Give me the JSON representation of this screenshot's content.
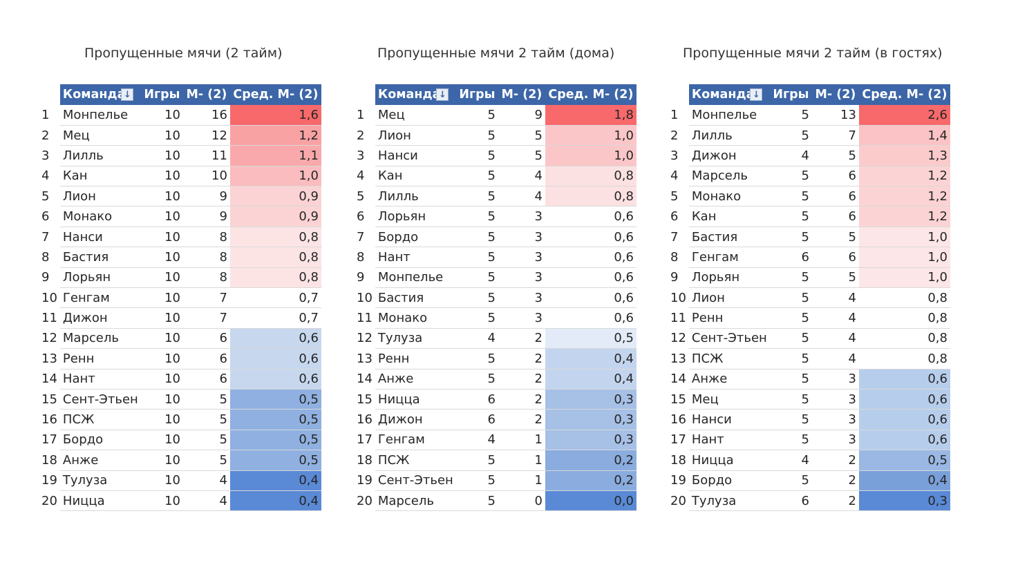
{
  "tables": [
    {
      "title": "Пропущенные мячи (2 тайм)",
      "headers": {
        "team": "Команда",
        "games": "Игры",
        "goals": "М- (2)",
        "avg": "Сред. М- (2)"
      },
      "rows": [
        {
          "rank": "1",
          "team": "Монпелье",
          "games": "10",
          "goals": "16",
          "avg": "1,6",
          "color": "#f8696b"
        },
        {
          "rank": "2",
          "team": "Мец",
          "games": "10",
          "goals": "12",
          "avg": "1,2",
          "color": "#f9a2a4"
        },
        {
          "rank": "3",
          "team": "Лилль",
          "games": "10",
          "goals": "11",
          "avg": "1,1",
          "color": "#f9a9ab"
        },
        {
          "rank": "4",
          "team": "Кан",
          "games": "10",
          "goals": "10",
          "avg": "1,0",
          "color": "#fabcbe"
        },
        {
          "rank": "5",
          "team": "Лион",
          "games": "10",
          "goals": "9",
          "avg": "0,9",
          "color": "#fbd3d4"
        },
        {
          "rank": "6",
          "team": "Монако",
          "games": "10",
          "goals": "9",
          "avg": "0,9",
          "color": "#fbd3d4"
        },
        {
          "rank": "7",
          "team": "Нанси",
          "games": "10",
          "goals": "8",
          "avg": "0,8",
          "color": "#fce4e5"
        },
        {
          "rank": "8",
          "team": "Бастия",
          "games": "10",
          "goals": "8",
          "avg": "0,8",
          "color": "#fce4e5"
        },
        {
          "rank": "9",
          "team": "Лорьян",
          "games": "10",
          "goals": "8",
          "avg": "0,8",
          "color": "#fce4e5"
        },
        {
          "rank": "10",
          "team": "Генгам",
          "games": "10",
          "goals": "7",
          "avg": "0,7",
          "color": "#ffffff"
        },
        {
          "rank": "11",
          "team": "Дижон",
          "games": "10",
          "goals": "7",
          "avg": "0,7",
          "color": "#ffffff"
        },
        {
          "rank": "12",
          "team": "Марсель",
          "games": "10",
          "goals": "6",
          "avg": "0,6",
          "color": "#c6d7ee"
        },
        {
          "rank": "13",
          "team": "Ренн",
          "games": "10",
          "goals": "6",
          "avg": "0,6",
          "color": "#c6d7ee"
        },
        {
          "rank": "14",
          "team": "Нант",
          "games": "10",
          "goals": "6",
          "avg": "0,6",
          "color": "#c6d7ee"
        },
        {
          "rank": "15",
          "team": "Сент-Этьен",
          "games": "10",
          "goals": "5",
          "avg": "0,5",
          "color": "#8fb0e0"
        },
        {
          "rank": "16",
          "team": "ПСЖ",
          "games": "10",
          "goals": "5",
          "avg": "0,5",
          "color": "#8fb0e0"
        },
        {
          "rank": "17",
          "team": "Бордо",
          "games": "10",
          "goals": "5",
          "avg": "0,5",
          "color": "#8fb0e0"
        },
        {
          "rank": "18",
          "team": "Анже",
          "games": "10",
          "goals": "5",
          "avg": "0,5",
          "color": "#8fb0e0"
        },
        {
          "rank": "19",
          "team": "Тулуза",
          "games": "10",
          "goals": "4",
          "avg": "0,4",
          "color": "#5a8ad6"
        },
        {
          "rank": "20",
          "team": "Ницца",
          "games": "10",
          "goals": "4",
          "avg": "0,4",
          "color": "#5a8ad6"
        }
      ]
    },
    {
      "title": "Пропущенные мячи 2 тайм (дома)",
      "headers": {
        "team": "Команда",
        "games": "Игры",
        "goals": "М- (2)",
        "avg": "Сред. М- (2)"
      },
      "rows": [
        {
          "rank": "1",
          "team": "Мец",
          "games": "5",
          "goals": "9",
          "avg": "1,8",
          "color": "#f8696b"
        },
        {
          "rank": "2",
          "team": "Лион",
          "games": "5",
          "goals": "5",
          "avg": "1,0",
          "color": "#fbc6c8"
        },
        {
          "rank": "3",
          "team": "Нанси",
          "games": "5",
          "goals": "5",
          "avg": "1,0",
          "color": "#fbc6c8"
        },
        {
          "rank": "4",
          "team": "Кан",
          "games": "5",
          "goals": "4",
          "avg": "0,8",
          "color": "#fce1e2"
        },
        {
          "rank": "5",
          "team": "Лилль",
          "games": "5",
          "goals": "4",
          "avg": "0,8",
          "color": "#fce1e2"
        },
        {
          "rank": "6",
          "team": "Лорьян",
          "games": "5",
          "goals": "3",
          "avg": "0,6",
          "color": "#ffffff"
        },
        {
          "rank": "7",
          "team": "Бордо",
          "games": "5",
          "goals": "3",
          "avg": "0,6",
          "color": "#ffffff"
        },
        {
          "rank": "8",
          "team": "Нант",
          "games": "5",
          "goals": "3",
          "avg": "0,6",
          "color": "#ffffff"
        },
        {
          "rank": "9",
          "team": "Монпелье",
          "games": "5",
          "goals": "3",
          "avg": "0,6",
          "color": "#ffffff"
        },
        {
          "rank": "10",
          "team": "Бастия",
          "games": "5",
          "goals": "3",
          "avg": "0,6",
          "color": "#ffffff"
        },
        {
          "rank": "11",
          "team": "Монако",
          "games": "5",
          "goals": "3",
          "avg": "0,6",
          "color": "#ffffff"
        },
        {
          "rank": "12",
          "team": "Тулуза",
          "games": "4",
          "goals": "2",
          "avg": "0,5",
          "color": "#e2ebf7"
        },
        {
          "rank": "13",
          "team": "Ренн",
          "games": "5",
          "goals": "2",
          "avg": "0,4",
          "color": "#c3d5ee"
        },
        {
          "rank": "14",
          "team": "Анже",
          "games": "5",
          "goals": "2",
          "avg": "0,4",
          "color": "#c3d5ee"
        },
        {
          "rank": "15",
          "team": "Ницца",
          "games": "6",
          "goals": "2",
          "avg": "0,3",
          "color": "#a6c0e6"
        },
        {
          "rank": "16",
          "team": "Дижон",
          "games": "6",
          "goals": "2",
          "avg": "0,3",
          "color": "#a6c0e6"
        },
        {
          "rank": "17",
          "team": "Генгам",
          "games": "4",
          "goals": "1",
          "avg": "0,3",
          "color": "#a6c0e6"
        },
        {
          "rank": "18",
          "team": "ПСЖ",
          "games": "5",
          "goals": "1",
          "avg": "0,2",
          "color": "#8aacde"
        },
        {
          "rank": "19",
          "team": "Сент-Этьен",
          "games": "5",
          "goals": "1",
          "avg": "0,2",
          "color": "#8aacde"
        },
        {
          "rank": "20",
          "team": "Марсель",
          "games": "5",
          "goals": "0",
          "avg": "0,0",
          "color": "#5a8ad6"
        }
      ]
    },
    {
      "title": "Пропущенные мячи 2 тайм (в гостях)",
      "headers": {
        "team": "Команда",
        "games": "Игры",
        "goals": "М- (2)",
        "avg": "Сред. М- (2)"
      },
      "rows": [
        {
          "rank": "1",
          "team": "Монпелье",
          "games": "5",
          "goals": "13",
          "avg": "2,6",
          "color": "#f8696b"
        },
        {
          "rank": "2",
          "team": "Лилль",
          "games": "5",
          "goals": "7",
          "avg": "1,4",
          "color": "#fbc3c5"
        },
        {
          "rank": "3",
          "team": "Дижон",
          "games": "4",
          "goals": "5",
          "avg": "1,3",
          "color": "#fbcbcc"
        },
        {
          "rank": "4",
          "team": "Марсель",
          "games": "5",
          "goals": "6",
          "avg": "1,2",
          "color": "#fcd3d4"
        },
        {
          "rank": "5",
          "team": "Монако",
          "games": "5",
          "goals": "6",
          "avg": "1,2",
          "color": "#fcd3d4"
        },
        {
          "rank": "6",
          "team": "Кан",
          "games": "5",
          "goals": "6",
          "avg": "1,2",
          "color": "#fcd3d4"
        },
        {
          "rank": "7",
          "team": "Бастия",
          "games": "5",
          "goals": "5",
          "avg": "1,0",
          "color": "#fde6e7"
        },
        {
          "rank": "8",
          "team": "Генгам",
          "games": "6",
          "goals": "6",
          "avg": "1,0",
          "color": "#fde6e7"
        },
        {
          "rank": "9",
          "team": "Лорьян",
          "games": "5",
          "goals": "5",
          "avg": "1,0",
          "color": "#fde6e7"
        },
        {
          "rank": "10",
          "team": "Лион",
          "games": "5",
          "goals": "4",
          "avg": "0,8",
          "color": "#ffffff"
        },
        {
          "rank": "11",
          "team": "Ренн",
          "games": "5",
          "goals": "4",
          "avg": "0,8",
          "color": "#ffffff"
        },
        {
          "rank": "12",
          "team": "Сент-Этьен",
          "games": "5",
          "goals": "4",
          "avg": "0,8",
          "color": "#ffffff"
        },
        {
          "rank": "13",
          "team": "ПСЖ",
          "games": "5",
          "goals": "4",
          "avg": "0,8",
          "color": "#ffffff"
        },
        {
          "rank": "14",
          "team": "Анже",
          "games": "5",
          "goals": "3",
          "avg": "0,6",
          "color": "#b7cdec"
        },
        {
          "rank": "15",
          "team": "Мец",
          "games": "5",
          "goals": "3",
          "avg": "0,6",
          "color": "#b7cdec"
        },
        {
          "rank": "16",
          "team": "Нанси",
          "games": "5",
          "goals": "3",
          "avg": "0,6",
          "color": "#b7cdec"
        },
        {
          "rank": "17",
          "team": "Нант",
          "games": "5",
          "goals": "3",
          "avg": "0,6",
          "color": "#b7cdec"
        },
        {
          "rank": "18",
          "team": "Ницца",
          "games": "4",
          "goals": "2",
          "avg": "0,5",
          "color": "#9ab8e3"
        },
        {
          "rank": "19",
          "team": "Бордо",
          "games": "5",
          "goals": "2",
          "avg": "0,4",
          "color": "#7aa0da"
        },
        {
          "rank": "20",
          "team": "Тулуза",
          "games": "6",
          "goals": "2",
          "avg": "0,3",
          "color": "#5a8ad6"
        }
      ]
    }
  ]
}
